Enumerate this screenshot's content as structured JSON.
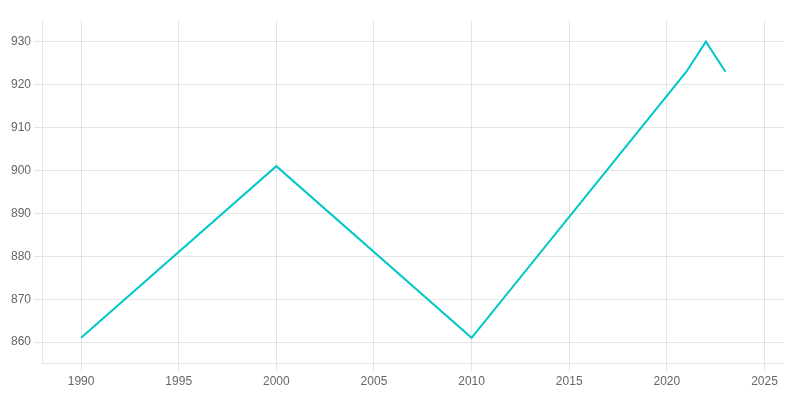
{
  "chart_data": {
    "type": "line",
    "x": [
      1990,
      2000,
      2010,
      2021,
      2022,
      2023
    ],
    "values": [
      861,
      901,
      861,
      923,
      930,
      923
    ],
    "color": "#00C8C8",
    "xlim": [
      1988,
      2026
    ],
    "ylim": [
      855,
      935
    ],
    "xticks": [
      1990,
      1995,
      2000,
      2005,
      2010,
      2015,
      2020,
      2025
    ],
    "yticks": [
      860,
      870,
      880,
      890,
      900,
      910,
      920,
      930
    ],
    "grid": true
  }
}
